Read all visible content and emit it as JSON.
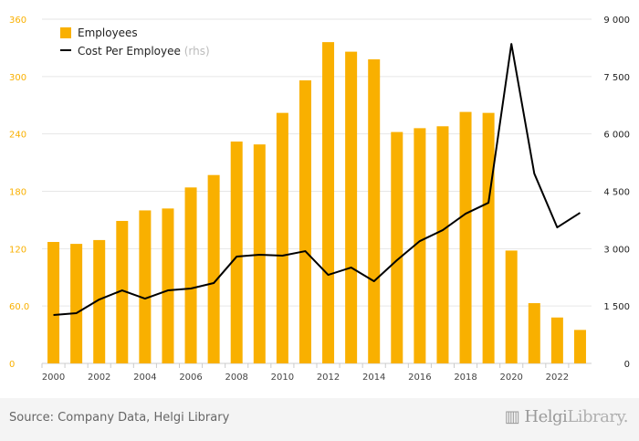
{
  "chart_data": {
    "type": "bar+line",
    "categories": [
      2000,
      2001,
      2002,
      2003,
      2004,
      2005,
      2006,
      2007,
      2008,
      2009,
      2010,
      2011,
      2012,
      2013,
      2014,
      2015,
      2016,
      2017,
      2018,
      2019,
      2020,
      2021,
      2022,
      2023
    ],
    "x_tick_labels": [
      "2000",
      "2002",
      "2004",
      "2006",
      "2008",
      "2010",
      "2012",
      "2014",
      "2016",
      "2018",
      "2020",
      "2022"
    ],
    "series": [
      {
        "name": "Employees",
        "type": "bar",
        "axis": "left",
        "color": "#f9b000",
        "values": [
          127,
          125,
          129,
          149,
          160,
          162,
          184,
          197,
          232,
          229,
          262,
          296,
          336,
          326,
          318,
          242,
          246,
          248,
          263,
          262,
          118,
          63,
          48,
          35
        ]
      },
      {
        "name": "Cost Per Employee",
        "type": "line",
        "axis": "right",
        "color": "#000000",
        "values": [
          1265,
          1313,
          1670,
          1909,
          1694,
          1909,
          1957,
          2100,
          2792,
          2840,
          2816,
          2935,
          2315,
          2506,
          2148,
          2697,
          3198,
          3484,
          3914,
          4200,
          8353,
          4964,
          3556,
          3938
        ]
      }
    ],
    "legend": {
      "items": [
        "Employees",
        "Cost Per Employee"
      ],
      "rhs_suffix": "(rhs)",
      "placement": "top-left"
    },
    "left_axis": {
      "ylim": [
        0,
        360
      ],
      "ticks": [
        "0",
        "60.0",
        "120",
        "180",
        "240",
        "300",
        "360"
      ],
      "color": "#f9b000"
    },
    "right_axis": {
      "ylim": [
        0,
        9000
      ],
      "ticks": [
        "0",
        "1 500",
        "3 000",
        "4 500",
        "6 000",
        "7 500",
        "9 000"
      ]
    },
    "grid": true
  },
  "footer": {
    "source": "Source: Company Data, Helgi Library",
    "logo_text": "HelgiLibrary."
  }
}
